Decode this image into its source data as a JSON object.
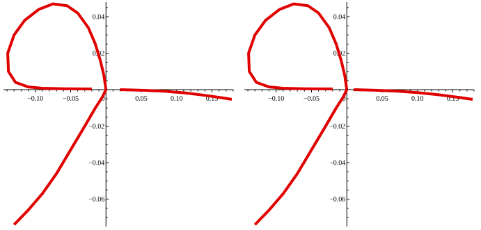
{
  "chart_data": [
    {
      "type": "line",
      "title": "",
      "xlabel": "",
      "ylabel": "",
      "xlim": [
        -0.145,
        0.18
      ],
      "ylim": [
        -0.075,
        0.048
      ],
      "grid": false,
      "x_tick_labels": [
        {
          "value": -0.1,
          "label": "−0.10"
        },
        {
          "value": -0.05,
          "label": "−0.05"
        },
        {
          "value": 0.0,
          "label": "0"
        },
        {
          "value": 0.05,
          "label": "0.05"
        },
        {
          "value": 0.1,
          "label": "0.10"
        },
        {
          "value": 0.15,
          "label": "0.15"
        }
      ],
      "y_tick_labels": [
        {
          "value": 0.04,
          "label": "0.04"
        },
        {
          "value": 0.02,
          "label": "0.02"
        },
        {
          "value": -0.02,
          "label": "−0.02"
        },
        {
          "value": -0.04,
          "label": "−0.04"
        },
        {
          "value": -0.06,
          "label": "−0.06"
        }
      ],
      "series": [
        {
          "color": "#e00000",
          "segments": [
            [
              [
                -0.13,
                -0.074
              ],
              [
                -0.11,
                -0.066
              ],
              [
                -0.09,
                -0.057
              ],
              [
                -0.07,
                -0.046
              ],
              [
                -0.05,
                -0.033
              ],
              [
                -0.03,
                -0.02
              ],
              [
                -0.015,
                -0.01
              ],
              [
                -0.005,
                -0.004
              ],
              [
                0.0,
                0.0
              ]
            ],
            [
              [
                0.0,
                0.0
              ],
              [
                -0.003,
                0.008
              ],
              [
                -0.008,
                0.016
              ],
              [
                -0.015,
                0.025
              ],
              [
                -0.025,
                0.034
              ],
              [
                -0.04,
                0.042
              ],
              [
                -0.055,
                0.046
              ],
              [
                -0.075,
                0.047
              ],
              [
                -0.095,
                0.044
              ],
              [
                -0.115,
                0.038
              ],
              [
                -0.13,
                0.03
              ],
              [
                -0.139,
                0.02
              ],
              [
                -0.138,
                0.01
              ],
              [
                -0.128,
                0.004
              ],
              [
                -0.11,
                0.0015
              ],
              [
                -0.09,
                0.0008
              ],
              [
                -0.06,
                0.0005
              ],
              [
                -0.02,
                0.0004
              ]
            ],
            [
              [
                0.02,
                0.0
              ],
              [
                0.05,
                -0.0003
              ],
              [
                0.08,
                -0.0008
              ],
              [
                0.11,
                -0.0017
              ],
              [
                0.14,
                -0.0031
              ],
              [
                0.17,
                -0.0048
              ],
              [
                0.178,
                -0.0053
              ]
            ]
          ]
        }
      ]
    },
    {
      "type": "line",
      "title": "",
      "xlabel": "",
      "ylabel": "",
      "xlim": [
        -0.145,
        0.18
      ],
      "ylim": [
        -0.075,
        0.048
      ],
      "grid": false,
      "x_tick_labels": [
        {
          "value": -0.1,
          "label": "−0.10"
        },
        {
          "value": -0.05,
          "label": "−0.05"
        },
        {
          "value": 0.0,
          "label": "0"
        },
        {
          "value": 0.05,
          "label": "0.05"
        },
        {
          "value": 0.1,
          "label": "0.10"
        },
        {
          "value": 0.15,
          "label": "0.15"
        }
      ],
      "y_tick_labels": [
        {
          "value": 0.04,
          "label": "0.04"
        },
        {
          "value": 0.02,
          "label": "0.02"
        },
        {
          "value": -0.02,
          "label": "−0.02"
        },
        {
          "value": -0.04,
          "label": "−0.04"
        },
        {
          "value": -0.06,
          "label": "−0.06"
        }
      ],
      "series": [
        {
          "color": "#e00000",
          "segments": [
            [
              [
                -0.13,
                -0.074
              ],
              [
                -0.11,
                -0.066
              ],
              [
                -0.09,
                -0.057
              ],
              [
                -0.07,
                -0.046
              ],
              [
                -0.05,
                -0.033
              ],
              [
                -0.03,
                -0.02
              ],
              [
                -0.015,
                -0.01
              ],
              [
                -0.005,
                -0.004
              ],
              [
                0.0,
                0.0
              ]
            ],
            [
              [
                0.0,
                0.0
              ],
              [
                -0.003,
                0.008
              ],
              [
                -0.008,
                0.016
              ],
              [
                -0.015,
                0.025
              ],
              [
                -0.025,
                0.034
              ],
              [
                -0.04,
                0.042
              ],
              [
                -0.055,
                0.046
              ],
              [
                -0.075,
                0.047
              ],
              [
                -0.095,
                0.044
              ],
              [
                -0.115,
                0.038
              ],
              [
                -0.13,
                0.03
              ],
              [
                -0.139,
                0.02
              ],
              [
                -0.138,
                0.01
              ],
              [
                -0.128,
                0.004
              ],
              [
                -0.11,
                0.0015
              ],
              [
                -0.09,
                0.0008
              ],
              [
                -0.06,
                0.0005
              ],
              [
                -0.02,
                0.0004
              ]
            ],
            [
              [
                0.01,
                0.0
              ],
              [
                0.04,
                -0.0003
              ],
              [
                0.07,
                -0.0008
              ],
              [
                0.1,
                -0.0016
              ],
              [
                0.13,
                -0.0028
              ],
              [
                0.16,
                -0.0043
              ],
              [
                0.178,
                -0.0053
              ]
            ]
          ]
        }
      ]
    }
  ]
}
